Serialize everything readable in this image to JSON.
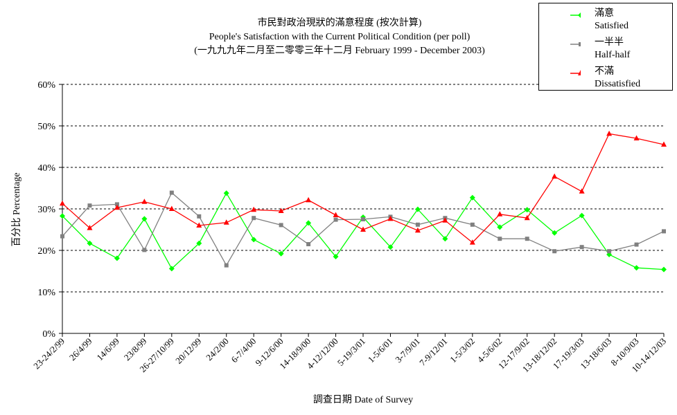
{
  "chart_data": {
    "type": "line",
    "title": "市民對政治現狀的滿意程度 (按次計算)",
    "subtitle": "People's Satisfaction with the Current Political Condition (per poll)",
    "subtitle2": "(一九九九年二月至二零零三年十二月 February 1999 - December 2003)",
    "xlabel": "調查日期 Date of Survey",
    "ylabel": "百分比 Percentage",
    "ylim": [
      0,
      60
    ],
    "yticks": [
      "0%",
      "10%",
      "20%",
      "30%",
      "40%",
      "50%",
      "60%"
    ],
    "grid": "horizontal dashed",
    "legend_position": "top-right",
    "categories": [
      "23-24/2/99",
      "26/4/99",
      "14/6/99",
      "23/8/99",
      "26-27/10/99",
      "20/12/99",
      "24/2/00",
      "6-7/4/00",
      "9-12/6/00",
      "14-18/9/00",
      "4-12/12/00",
      "5-19/3/01",
      "1-5/6/01",
      "3-7/9/01",
      "7-9/12/01",
      "1-5/3/02",
      "4-5/6/02",
      "12-17/9/02",
      "13-18/12/02",
      "17-19/3/03",
      "13-18/6/03",
      "8-10/9/03",
      "10-14/12/03"
    ],
    "series": [
      {
        "name": "滿意",
        "name2": "Satisfied",
        "color": "#00ff00",
        "marker": "diamond",
        "values": [
          28.3,
          21.7,
          18.1,
          27.6,
          15.6,
          21.7,
          33.8,
          22.6,
          19.2,
          26.6,
          18.5,
          28.0,
          20.8,
          29.9,
          22.8,
          32.7,
          25.6,
          29.8,
          24.2,
          28.4,
          19.0,
          15.8,
          15.4
        ]
      },
      {
        "name": "一半半",
        "name2": "Half-half",
        "color": "#808080",
        "marker": "square",
        "values": [
          23.4,
          30.8,
          31.1,
          20.1,
          33.9,
          28.2,
          16.4,
          27.8,
          26.1,
          21.5,
          27.4,
          27.5,
          28.1,
          26.2,
          27.8,
          26.2,
          22.8,
          22.8,
          19.8,
          20.8,
          19.8,
          21.4,
          24.6
        ]
      },
      {
        "name": "不滿",
        "name2": "Dissatisfied",
        "color": "#ff0000",
        "marker": "triangle",
        "values": [
          31.3,
          25.4,
          30.3,
          31.7,
          30.0,
          26.0,
          26.7,
          29.8,
          29.5,
          32.1,
          28.5,
          25.0,
          27.6,
          24.8,
          27.2,
          21.9,
          28.7,
          27.8,
          37.8,
          34.2,
          48.1,
          47.0,
          45.5
        ]
      }
    ]
  }
}
